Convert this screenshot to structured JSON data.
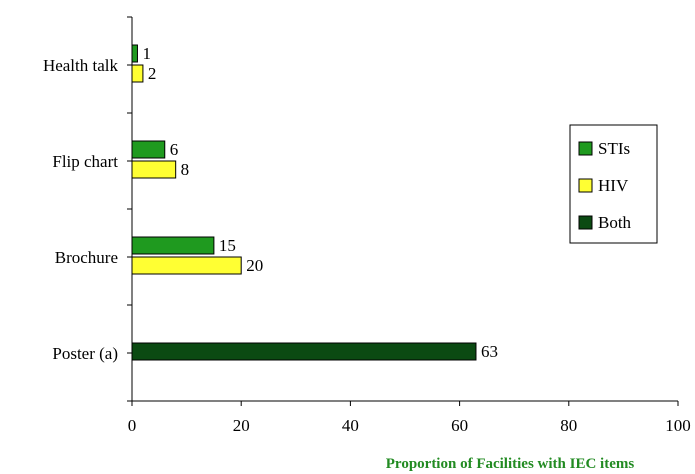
{
  "chart_data": {
    "type": "bar",
    "orientation": "horizontal",
    "categories": [
      "Health talk",
      "Flip chart",
      "Brochure",
      "Poster (a)"
    ],
    "series": [
      {
        "name": "STIs",
        "color": "#1f9a1f",
        "values": [
          1,
          6,
          15,
          null
        ]
      },
      {
        "name": "HIV",
        "color": "#ffff33",
        "values": [
          2,
          8,
          20,
          null
        ]
      },
      {
        "name": "Both",
        "color": "#0b4a12",
        "values": [
          null,
          null,
          null,
          63
        ]
      }
    ],
    "xlabel": "Proportion of Facilities with IEC items",
    "xlabel_color": "#228b22",
    "xlim": [
      0,
      100
    ],
    "xticks": [
      "0",
      "20",
      "40",
      "60",
      "80",
      "100"
    ],
    "grid": false,
    "legend_position": "right",
    "data_labels": true
  }
}
